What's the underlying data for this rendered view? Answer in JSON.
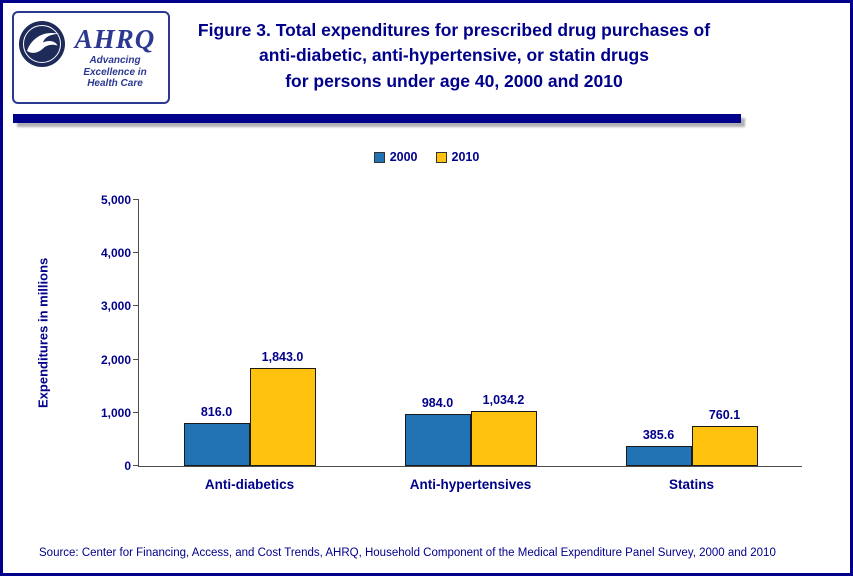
{
  "page": {
    "border_color": "#00008B",
    "background": "#FFFFFF",
    "text_color": "#00008B"
  },
  "logo": {
    "acronym": "AHRQ",
    "tagline_line1": "Advancing",
    "tagline_line2": "Excellence in",
    "tagline_line3": "Health Care"
  },
  "header": {
    "title_line1": "Figure 3. Total expenditures for prescribed drug purchases of",
    "title_line2": "anti-diabetic, anti-hypertensive, or statin drugs",
    "title_line3": "for persons under age 40, 2000 and 2010"
  },
  "chart_data": {
    "type": "bar",
    "title": "Figure 3. Total expenditures for prescribed drug purchases of anti-diabetic, anti-hypertensive, or statin drugs for persons under age 40, 2000 and 2010",
    "categories": [
      "Anti-diabetics",
      "Anti-hypertensives",
      "Statins"
    ],
    "series": [
      {
        "name": "2000",
        "color": "#2173B3",
        "values": [
          816.0,
          984.0,
          385.6
        ],
        "labels": [
          "816.0",
          "984.0",
          "385.6"
        ]
      },
      {
        "name": "2010",
        "color": "#FFC20E",
        "values": [
          1843.0,
          1034.2,
          760.1
        ],
        "labels": [
          "1,843.0",
          "1,034.2",
          "760.1"
        ]
      }
    ],
    "xlabel": "",
    "ylabel": "Expenditures in millions",
    "ylim": [
      0,
      5000
    ],
    "yticks": [
      0,
      1000,
      2000,
      3000,
      4000,
      5000
    ],
    "ytick_labels": [
      "0",
      "1,000",
      "2,000",
      "3,000",
      "4,000",
      "5,000"
    ],
    "grid": false,
    "legend_position": "top-center"
  },
  "footer": {
    "source": "Source: Center for Financing, Access, and Cost Trends, AHRQ, Household Component of the Medical Expenditure Panel Survey, 2000 and 2010"
  }
}
